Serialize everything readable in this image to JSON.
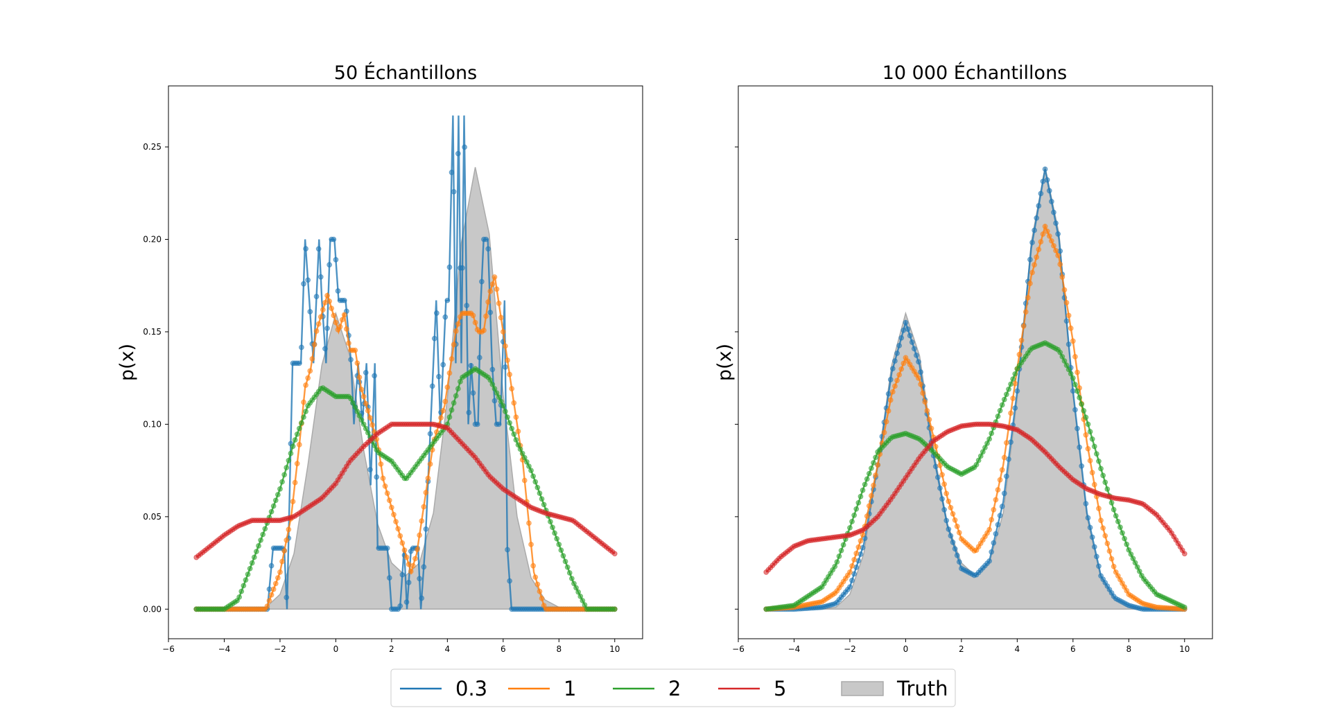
{
  "figure": {
    "legend": {
      "placement": "bottom-center",
      "items": [
        {
          "label": "0.3",
          "color": "#1f77b4",
          "kind": "line"
        },
        {
          "label": "1",
          "color": "#ff7f0e",
          "kind": "line"
        },
        {
          "label": "2",
          "color": "#2ca02c",
          "kind": "line"
        },
        {
          "label": "5",
          "color": "#d62728",
          "kind": "line"
        },
        {
          "label": "Truth",
          "color": "#c8c8c8",
          "kind": "patch"
        }
      ]
    }
  },
  "chart_data": [
    {
      "type": "line",
      "title": "50 Échantillons",
      "xlabel": "",
      "ylabel": "p(x)",
      "xlim": [
        -6,
        11
      ],
      "ylim": [
        -0.016,
        0.283
      ],
      "xticks": [
        -6,
        -4,
        -2,
        0,
        2,
        4,
        6,
        8,
        10
      ],
      "xtick_labels": [
        "−6",
        "−4",
        "−2",
        "0",
        "2",
        "4",
        "6",
        "8",
        "10"
      ],
      "yticks": [
        0.0,
        0.05,
        0.1,
        0.15,
        0.2,
        0.25
      ],
      "ytick_labels": [
        "0.00",
        "0.05",
        "0.10",
        "0.15",
        "0.20",
        "0.25"
      ],
      "truth": {
        "label": "Truth",
        "color": "#c8c8c8",
        "x": [
          -5,
          -4,
          -3,
          -2.5,
          -2,
          -1.5,
          -1,
          -0.5,
          0,
          0.5,
          1,
          1.5,
          2,
          2.5,
          3,
          3.5,
          4,
          4.5,
          5,
          5.5,
          6,
          6.5,
          7,
          7.5,
          8,
          8.5,
          9,
          10
        ],
        "y": [
          0,
          0,
          0,
          0.001,
          0.008,
          0.03,
          0.078,
          0.132,
          0.16,
          0.137,
          0.086,
          0.046,
          0.025,
          0.018,
          0.025,
          0.052,
          0.114,
          0.198,
          0.239,
          0.203,
          0.116,
          0.05,
          0.017,
          0.005,
          0.001,
          0,
          0,
          0
        ]
      },
      "series": [
        {
          "name": "0.3",
          "color": "#1f77b4",
          "x": [
            -5,
            -3.1,
            -2.45,
            -2.25,
            -1.85,
            -1.75,
            -1.55,
            -1.25,
            -1.1,
            -0.95,
            -0.8,
            -0.6,
            -0.5,
            -0.35,
            -0.2,
            -0.05,
            0.1,
            0.25,
            0.35,
            0.55,
            0.65,
            0.8,
            0.95,
            1.1,
            1.25,
            1.4,
            1.5,
            1.7,
            1.85,
            2.0,
            2.1,
            2.3,
            2.45,
            2.55,
            2.7,
            2.95,
            3.05,
            3.2,
            3.4,
            3.6,
            3.75,
            3.95,
            4.05,
            4.2,
            4.3,
            4.4,
            4.5,
            4.6,
            4.75,
            4.85,
            5.0,
            5.1,
            5.2,
            5.3,
            5.45,
            5.6,
            5.75,
            5.9,
            6.05,
            6.15,
            6.3,
            6.45,
            6.6,
            6.75,
            6.9,
            7.05,
            7.2,
            10
          ],
          "y": [
            0,
            0,
            0,
            0.033,
            0.033,
            0,
            0.133,
            0.133,
            0.2,
            0.167,
            0.133,
            0.2,
            0.167,
            0.133,
            0.2,
            0.2,
            0.167,
            0.167,
            0.167,
            0.133,
            0.1,
            0.133,
            0.1,
            0.133,
            0.067,
            0.133,
            0.033,
            0.033,
            0.033,
            0,
            0,
            0,
            0.033,
            0,
            0.033,
            0.033,
            0,
            0.033,
            0.1,
            0.167,
            0.1,
            0.167,
            0.167,
            0.267,
            0.133,
            0.267,
            0.133,
            0.267,
            0.1,
            0.133,
            0.1,
            0.1,
            0.167,
            0.2,
            0.2,
            0.133,
            0.1,
            0.1,
            0.167,
            0.033,
            0,
            0,
            0,
            0,
            0,
            0,
            0,
            0
          ]
        },
        {
          "name": "1",
          "color": "#ff7f0e",
          "x": [
            -5,
            -3.5,
            -2.5,
            -2.0,
            -1.6,
            -1.3,
            -1.1,
            -0.9,
            -0.7,
            -0.5,
            -0.3,
            -0.1,
            0.1,
            0.3,
            0.5,
            0.7,
            0.9,
            1.1,
            1.3,
            1.5,
            1.7,
            1.9,
            2.1,
            2.3,
            2.5,
            2.7,
            2.9,
            3.1,
            3.3,
            3.5,
            3.7,
            3.9,
            4.1,
            4.3,
            4.5,
            4.7,
            4.9,
            5.1,
            5.3,
            5.5,
            5.7,
            5.9,
            6.1,
            6.3,
            6.5,
            6.7,
            6.9,
            7.1,
            7.5,
            8,
            10
          ],
          "y": [
            0,
            0,
            0,
            0.02,
            0.05,
            0.09,
            0.12,
            0.13,
            0.15,
            0.16,
            0.17,
            0.16,
            0.15,
            0.16,
            0.14,
            0.14,
            0.12,
            0.11,
            0.1,
            0.09,
            0.07,
            0.06,
            0.05,
            0.04,
            0.03,
            0.02,
            0.03,
            0.05,
            0.07,
            0.09,
            0.1,
            0.11,
            0.13,
            0.15,
            0.16,
            0.16,
            0.16,
            0.15,
            0.15,
            0.17,
            0.18,
            0.16,
            0.14,
            0.12,
            0.1,
            0.08,
            0.05,
            0.02,
            0,
            0,
            0
          ]
        },
        {
          "name": "2",
          "color": "#2ca02c",
          "x": [
            -5,
            -4.0,
            -3.5,
            -3.0,
            -2.5,
            -2.0,
            -1.5,
            -1.0,
            -0.5,
            0,
            0.5,
            1.0,
            1.5,
            2.0,
            2.5,
            3.0,
            3.5,
            4.0,
            4.5,
            5.0,
            5.5,
            6.0,
            6.5,
            7.0,
            7.5,
            8.0,
            8.5,
            9,
            10
          ],
          "y": [
            0,
            0,
            0.005,
            0.025,
            0.045,
            0.065,
            0.09,
            0.11,
            0.12,
            0.115,
            0.115,
            0.1,
            0.085,
            0.08,
            0.07,
            0.08,
            0.09,
            0.1,
            0.125,
            0.13,
            0.125,
            0.11,
            0.09,
            0.075,
            0.055,
            0.035,
            0.015,
            0,
            0
          ]
        },
        {
          "name": "5",
          "color": "#d62728",
          "x": [
            -5,
            -4.5,
            -4.0,
            -3.5,
            -3.0,
            -2.5,
            -2.0,
            -1.5,
            -1.0,
            -0.5,
            0,
            0.5,
            1.0,
            1.5,
            2.0,
            2.5,
            3.0,
            3.5,
            4.0,
            4.5,
            5.0,
            5.5,
            6.0,
            6.5,
            7.0,
            7.5,
            8.0,
            8.5,
            9.0,
            9.5,
            10
          ],
          "y": [
            0.028,
            0.034,
            0.04,
            0.045,
            0.048,
            0.048,
            0.048,
            0.05,
            0.055,
            0.06,
            0.068,
            0.08,
            0.088,
            0.095,
            0.1,
            0.1,
            0.1,
            0.1,
            0.098,
            0.09,
            0.082,
            0.072,
            0.065,
            0.06,
            0.055,
            0.052,
            0.05,
            0.048,
            0.042,
            0.036,
            0.03
          ]
        }
      ]
    },
    {
      "type": "line",
      "title": "10 000 Échantillons",
      "xlabel": "",
      "ylabel": "p(x)",
      "xlim": [
        -6,
        11
      ],
      "ylim": [
        -0.016,
        0.283
      ],
      "xticks": [
        -6,
        -4,
        -2,
        0,
        2,
        4,
        6,
        8,
        10
      ],
      "xtick_labels": [
        "−6",
        "−4",
        "−2",
        "0",
        "2",
        "4",
        "6",
        "8",
        "10"
      ],
      "yticks": [
        0.0,
        0.05,
        0.1,
        0.15,
        0.2,
        0.25
      ],
      "ytick_labels": [
        "",
        "",
        "",
        "",
        "",
        ""
      ],
      "truth": {
        "label": "Truth",
        "color": "#c8c8c8",
        "x": [
          -5,
          -4,
          -3,
          -2.5,
          -2,
          -1.5,
          -1,
          -0.5,
          0,
          0.5,
          1,
          1.5,
          2,
          2.5,
          3,
          3.5,
          4,
          4.5,
          5,
          5.5,
          6,
          6.5,
          7,
          7.5,
          8,
          8.5,
          9,
          10
        ],
        "y": [
          0,
          0,
          0,
          0.001,
          0.008,
          0.03,
          0.078,
          0.132,
          0.16,
          0.137,
          0.086,
          0.046,
          0.025,
          0.018,
          0.025,
          0.052,
          0.114,
          0.198,
          0.239,
          0.203,
          0.116,
          0.05,
          0.017,
          0.005,
          0.001,
          0,
          0,
          0
        ]
      },
      "series": [
        {
          "name": "0.3",
          "color": "#1f77b4",
          "x": [
            -5,
            -4,
            -3,
            -2.5,
            -2,
            -1.5,
            -1,
            -0.5,
            0,
            0.5,
            1,
            1.5,
            2,
            2.5,
            3,
            3.5,
            4,
            4.5,
            5,
            5.5,
            6,
            6.5,
            7,
            7.5,
            8,
            8.5,
            9,
            10
          ],
          "y": [
            0,
            0,
            0.001,
            0.003,
            0.012,
            0.035,
            0.078,
            0.128,
            0.155,
            0.132,
            0.083,
            0.045,
            0.022,
            0.018,
            0.026,
            0.058,
            0.118,
            0.195,
            0.238,
            0.2,
            0.118,
            0.052,
            0.018,
            0.006,
            0.002,
            0,
            0,
            0
          ]
        },
        {
          "name": "1",
          "color": "#ff7f0e",
          "x": [
            -5,
            -4,
            -3,
            -2.5,
            -2,
            -1.5,
            -1,
            -0.5,
            0,
            0.5,
            1,
            1.5,
            2,
            2.5,
            3,
            3.5,
            4,
            4.5,
            5,
            5.5,
            6,
            6.5,
            7,
            7.5,
            8,
            8.5,
            9,
            10
          ],
          "y": [
            0,
            0.001,
            0.004,
            0.009,
            0.02,
            0.042,
            0.078,
            0.116,
            0.136,
            0.124,
            0.093,
            0.06,
            0.038,
            0.031,
            0.043,
            0.078,
            0.13,
            0.18,
            0.207,
            0.19,
            0.145,
            0.09,
            0.048,
            0.021,
            0.008,
            0.003,
            0.001,
            0
          ]
        },
        {
          "name": "2",
          "color": "#2ca02c",
          "x": [
            -5,
            -4,
            -3,
            -2.5,
            -2,
            -1.5,
            -1,
            -0.5,
            0,
            0.5,
            1,
            1.5,
            2,
            2.5,
            3,
            3.5,
            4,
            4.5,
            5,
            5.5,
            6,
            6.5,
            7,
            7.5,
            8,
            8.5,
            9,
            10
          ],
          "y": [
            0,
            0.002,
            0.012,
            0.024,
            0.044,
            0.066,
            0.085,
            0.093,
            0.095,
            0.092,
            0.085,
            0.077,
            0.073,
            0.077,
            0.092,
            0.112,
            0.13,
            0.141,
            0.144,
            0.14,
            0.125,
            0.102,
            0.076,
            0.052,
            0.032,
            0.017,
            0.008,
            0.001
          ]
        },
        {
          "name": "5",
          "color": "#d62728",
          "x": [
            -5,
            -4.5,
            -4,
            -3.5,
            -3,
            -2.5,
            -2,
            -1.5,
            -1,
            -0.5,
            0,
            0.5,
            1,
            1.5,
            2,
            2.5,
            3,
            3.5,
            4,
            4.5,
            5,
            5.5,
            6,
            6.5,
            7,
            7.5,
            8,
            8.5,
            9,
            9.5,
            10
          ],
          "y": [
            0.02,
            0.028,
            0.034,
            0.037,
            0.038,
            0.039,
            0.04,
            0.043,
            0.05,
            0.06,
            0.071,
            0.082,
            0.091,
            0.096,
            0.099,
            0.1,
            0.1,
            0.099,
            0.097,
            0.092,
            0.085,
            0.077,
            0.07,
            0.065,
            0.062,
            0.06,
            0.059,
            0.057,
            0.051,
            0.042,
            0.03
          ]
        }
      ]
    }
  ]
}
